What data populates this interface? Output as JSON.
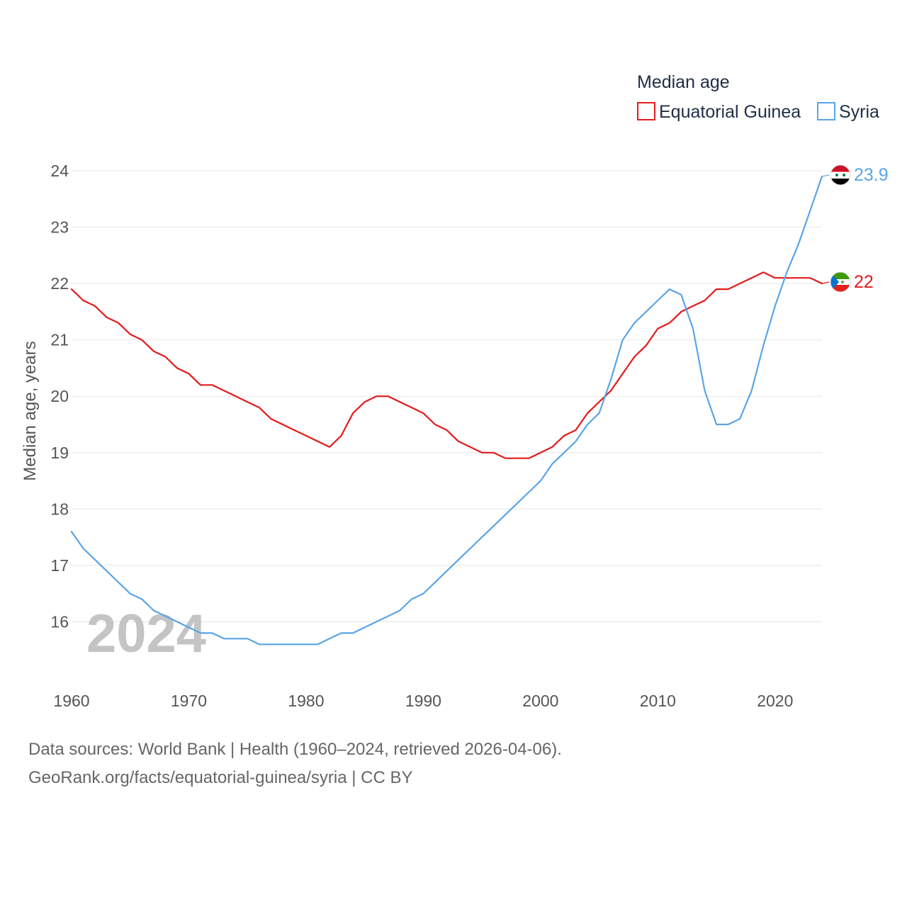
{
  "chart_data": {
    "type": "line",
    "title": "Median age",
    "xlabel": "",
    "ylabel": "Median age, years",
    "xlim": [
      1960,
      2024
    ],
    "ylim": [
      15,
      24
    ],
    "x_ticks": [
      1960,
      1970,
      1980,
      1990,
      2000,
      2010,
      2020
    ],
    "y_ticks": [
      16,
      17,
      18,
      19,
      20,
      21,
      22,
      23,
      24
    ],
    "grid": true,
    "legend_position": "top-right",
    "year_label": "2024",
    "x": [
      1960,
      1961,
      1962,
      1963,
      1964,
      1965,
      1966,
      1967,
      1968,
      1969,
      1970,
      1971,
      1972,
      1973,
      1974,
      1975,
      1976,
      1977,
      1978,
      1979,
      1980,
      1981,
      1982,
      1983,
      1984,
      1985,
      1986,
      1987,
      1988,
      1989,
      1990,
      1991,
      1992,
      1993,
      1994,
      1995,
      1996,
      1997,
      1998,
      1999,
      2000,
      2001,
      2002,
      2003,
      2004,
      2005,
      2006,
      2007,
      2008,
      2009,
      2010,
      2011,
      2012,
      2013,
      2014,
      2015,
      2016,
      2017,
      2018,
      2019,
      2020,
      2021,
      2022,
      2023,
      2024
    ],
    "series": [
      {
        "name": "Equatorial Guinea",
        "color": "#e41a1c",
        "end_label": "22",
        "flag": "equatorial-guinea-flag",
        "values": [
          21.9,
          21.7,
          21.6,
          21.4,
          21.3,
          21.1,
          21.0,
          20.8,
          20.7,
          20.5,
          20.4,
          20.2,
          20.2,
          20.1,
          20.0,
          19.9,
          19.8,
          19.6,
          19.5,
          19.4,
          19.3,
          19.2,
          19.1,
          19.3,
          19.7,
          19.9,
          20.0,
          20.0,
          19.9,
          19.8,
          19.7,
          19.5,
          19.4,
          19.2,
          19.1,
          19.0,
          19.0,
          18.9,
          18.9,
          18.9,
          19.0,
          19.1,
          19.3,
          19.4,
          19.7,
          19.9,
          20.1,
          20.4,
          20.7,
          20.9,
          21.2,
          21.3,
          21.5,
          21.6,
          21.7,
          21.9,
          21.9,
          22.0,
          22.1,
          22.2,
          22.1,
          22.1,
          22.1,
          22.1,
          22.0
        ]
      },
      {
        "name": "Syria",
        "color": "#5aa5e6",
        "end_label": "23.9",
        "flag": "syria-flag",
        "values": [
          17.6,
          17.3,
          17.1,
          16.9,
          16.7,
          16.5,
          16.4,
          16.2,
          16.1,
          16.0,
          15.9,
          15.8,
          15.8,
          15.7,
          15.7,
          15.7,
          15.6,
          15.6,
          15.6,
          15.6,
          15.6,
          15.6,
          15.7,
          15.8,
          15.8,
          15.9,
          16.0,
          16.1,
          16.2,
          16.4,
          16.5,
          16.7,
          16.9,
          17.1,
          17.3,
          17.5,
          17.7,
          17.9,
          18.1,
          18.3,
          18.5,
          18.8,
          19.0,
          19.2,
          19.5,
          19.7,
          20.3,
          21.0,
          21.3,
          21.5,
          21.7,
          21.9,
          21.8,
          21.2,
          20.1,
          19.5,
          19.5,
          19.6,
          20.1,
          20.9,
          21.6,
          22.2,
          22.7,
          23.3,
          23.9
        ]
      }
    ]
  },
  "footer": {
    "source_line": "Data sources: World Bank | Health (1960–2024, retrieved 2026-04-06).",
    "credit_line": "GeoRank.org/facts/equatorial-guinea/syria | CC BY"
  }
}
